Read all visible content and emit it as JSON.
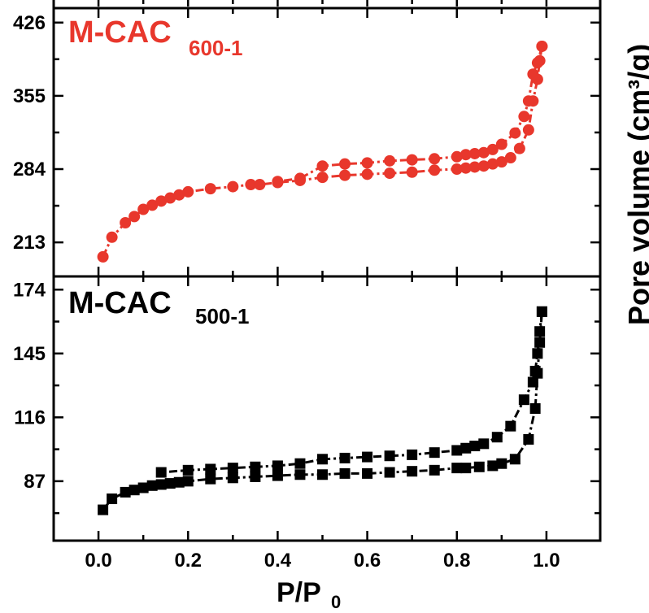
{
  "chart_data": [
    {
      "type": "scatter",
      "panel": "top",
      "title": "M-CAC",
      "title_subscript": "600-1",
      "title_color": "#e8372c",
      "series_color": "#e8372c",
      "marker": "circle",
      "xlabel": "P/P",
      "xlabel_subscript": "0",
      "ylabel": "Pore volume (cm³/g)",
      "xlim": [
        -0.1,
        1.12
      ],
      "ylim": [
        180,
        440
      ],
      "yticks": [
        213,
        284,
        355,
        426
      ],
      "ytick_labels": [
        "213",
        "284",
        "355",
        "426"
      ],
      "series": [
        {
          "x": [
            0.01,
            0.03,
            0.06,
            0.08,
            0.1,
            0.12,
            0.14,
            0.16,
            0.18,
            0.2,
            0.25,
            0.3,
            0.34,
            0.36,
            0.4,
            0.45,
            0.5,
            0.55,
            0.6,
            0.65,
            0.7,
            0.75,
            0.8,
            0.82,
            0.84,
            0.86,
            0.88,
            0.9,
            0.92,
            0.94,
            0.96,
            0.97,
            0.98,
            0.985,
            0.99
          ],
          "y": [
            199,
            218,
            232,
            238,
            245,
            249,
            253,
            256,
            259,
            262,
            265,
            267,
            269,
            269,
            271,
            273,
            276,
            278,
            279,
            280,
            281,
            283,
            284,
            285,
            286,
            287,
            289,
            291,
            295,
            304,
            322,
            350,
            371,
            389,
            403
          ]
        },
        {
          "x": [
            0.99,
            0.98,
            0.97,
            0.96,
            0.95,
            0.93,
            0.9,
            0.88,
            0.86,
            0.84,
            0.82,
            0.8,
            0.75,
            0.7,
            0.65,
            0.6,
            0.55,
            0.5,
            0.45,
            0.4
          ],
          "y": [
            403,
            387,
            376,
            350,
            335,
            319,
            308,
            303,
            300,
            299,
            298,
            296,
            294,
            293,
            292,
            290,
            289,
            287,
            275,
            272
          ]
        }
      ]
    },
    {
      "type": "scatter",
      "panel": "bottom",
      "title": "M-CAC",
      "title_subscript": "500-1",
      "title_color": "#000000",
      "series_color": "#000000",
      "marker": "square",
      "xlabel": "P/P",
      "xlabel_subscript": "0",
      "xlim": [
        -0.1,
        1.12
      ],
      "ylim": [
        60,
        180
      ],
      "xticks": [
        0.0,
        0.2,
        0.4,
        0.6,
        0.8,
        1.0
      ],
      "xtick_labels": [
        "0.0",
        "0.2",
        "0.4",
        "0.6",
        "0.8",
        "1.0"
      ],
      "yticks": [
        87,
        116,
        145,
        174
      ],
      "ytick_labels": [
        "87",
        "116",
        "145",
        "174"
      ],
      "series": [
        {
          "x": [
            0.01,
            0.03,
            0.06,
            0.08,
            0.1,
            0.12,
            0.14,
            0.16,
            0.18,
            0.2,
            0.25,
            0.3,
            0.35,
            0.4,
            0.45,
            0.5,
            0.55,
            0.6,
            0.65,
            0.7,
            0.75,
            0.8,
            0.82,
            0.85,
            0.88,
            0.9,
            0.93,
            0.96,
            0.975,
            0.98,
            0.985,
            0.99
          ],
          "y": [
            74,
            79,
            82,
            83,
            84,
            85,
            85.5,
            86,
            86.5,
            87,
            88,
            88.5,
            89,
            89.5,
            90,
            90,
            90.5,
            90.5,
            91,
            91.5,
            92,
            93,
            93,
            93.5,
            94,
            95,
            97,
            106,
            120,
            136,
            150,
            164
          ]
        },
        {
          "x": [
            0.99,
            0.985,
            0.98,
            0.975,
            0.97,
            0.95,
            0.92,
            0.89,
            0.86,
            0.84,
            0.82,
            0.8,
            0.75,
            0.7,
            0.65,
            0.6,
            0.55,
            0.5,
            0.45,
            0.4,
            0.35,
            0.3,
            0.25,
            0.2,
            0.14
          ],
          "y": [
            164,
            155,
            145,
            137,
            132,
            124,
            112,
            107,
            104,
            103,
            102,
            101,
            100,
            99,
            98.5,
            98,
            97.5,
            97,
            95,
            94,
            93.5,
            93,
            92.5,
            92,
            91
          ]
        }
      ]
    }
  ]
}
